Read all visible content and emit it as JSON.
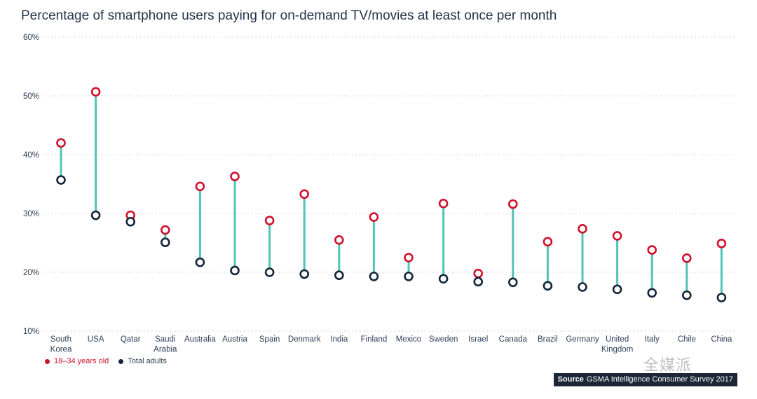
{
  "title": "Percentage of smartphone users paying for on-demand TV/movies at least once per month",
  "source": {
    "label": "Source",
    "text": "GSMA Intelligence Consumer Survey 2017"
  },
  "watermark": "全媒派",
  "colors": {
    "young": "#d0112b",
    "adults": "#14253a",
    "connector": "#4fc4b8",
    "grid": "#c8c8c8",
    "text": "#2c3e55"
  },
  "chart_data": {
    "type": "dumbbell",
    "y_unit": "%",
    "ylim": [
      10,
      60
    ],
    "yticks": [
      "10%",
      "20%",
      "30%",
      "40%",
      "50%",
      "60%"
    ],
    "ytick_values": [
      10,
      20,
      30,
      40,
      50,
      60
    ],
    "grid": true,
    "categories": [
      [
        "South",
        "Korea"
      ],
      [
        "USA"
      ],
      [
        "Qatar"
      ],
      [
        "Saudi",
        "Arabia"
      ],
      [
        "Australia"
      ],
      [
        "Austria"
      ],
      [
        "Spain"
      ],
      [
        "Denmark"
      ],
      [
        "India"
      ],
      [
        "Finland"
      ],
      [
        "Mexico"
      ],
      [
        "Sweden"
      ],
      [
        "Israel"
      ],
      [
        "Canada"
      ],
      [
        "Brazil"
      ],
      [
        "Germany"
      ],
      [
        "United",
        "Kingdom"
      ],
      [
        "Italy"
      ],
      [
        "Chile"
      ],
      [
        "China"
      ]
    ],
    "series": [
      {
        "name": "18–34 years old",
        "values": [
          42,
          50.7,
          29.7,
          27.2,
          34.6,
          36.3,
          28.8,
          33.3,
          25.5,
          29.4,
          22.5,
          31.7,
          19.8,
          31.6,
          25.2,
          27.4,
          26.2,
          23.8,
          22.4,
          24.9
        ]
      },
      {
        "name": "Total adults",
        "values": [
          35.7,
          29.7,
          28.6,
          25.1,
          21.7,
          20.3,
          20,
          19.7,
          19.5,
          19.3,
          19.3,
          18.9,
          18.4,
          18.3,
          17.7,
          17.5,
          17.1,
          16.5,
          16.1,
          15.7
        ]
      }
    ],
    "legend_position": "bottom-left"
  }
}
